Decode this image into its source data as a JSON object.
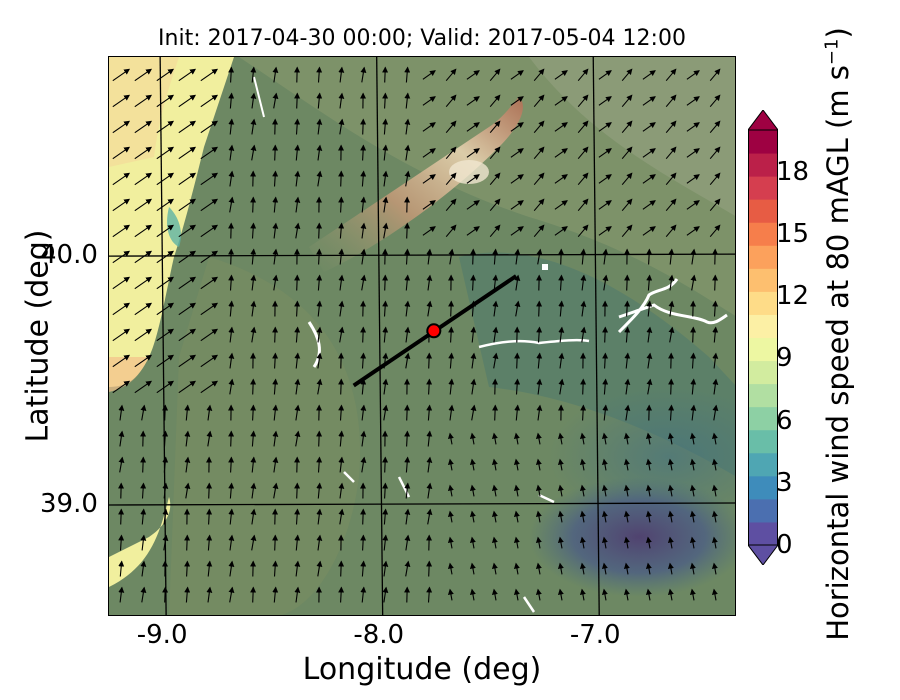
{
  "title": "Init: 2017-04-30 00:00; Valid: 2017-05-04 12:00",
  "x_axis": {
    "label": "Longitude (deg)",
    "range": [
      -9.25,
      -6.35
    ],
    "ticks": [
      {
        "value": -9.0,
        "label": "-9.0"
      },
      {
        "value": -8.0,
        "label": "-8.0"
      },
      {
        "value": -7.0,
        "label": "-7.0"
      }
    ]
  },
  "y_axis": {
    "label": "Latitude (deg)",
    "range": [
      38.55,
      40.8
    ],
    "ticks": [
      {
        "value": 39.0,
        "label": "39.0"
      },
      {
        "value": 40.0,
        "label": "40.0"
      }
    ]
  },
  "colorbar": {
    "label_main": "Horizontal wind speed at 80 mAGL (m s",
    "label_exp": "−1",
    "label_close": ")",
    "range": [
      0,
      20
    ],
    "ticks": [
      {
        "value": 0,
        "label": "0"
      },
      {
        "value": 3,
        "label": "3"
      },
      {
        "value": 6,
        "label": "6"
      },
      {
        "value": 9,
        "label": "9"
      },
      {
        "value": 12,
        "label": "12"
      },
      {
        "value": 15,
        "label": "15"
      },
      {
        "value": 18,
        "label": "18"
      }
    ],
    "colors": [
      "#5e4fa2",
      "#4b6fb0",
      "#3e8cbb",
      "#4fa6b3",
      "#69bea8",
      "#8dd0a4",
      "#b1dfa2",
      "#d2ec9f",
      "#edf7a2",
      "#fcf0a5",
      "#fedc88",
      "#fdbf6f",
      "#fca15c",
      "#f67e4b",
      "#e75c44",
      "#d53e4f",
      "#bb2049",
      "#9e0142"
    ]
  },
  "point_marker": {
    "lon": -7.75,
    "lat": 39.7,
    "color": "#ff0000"
  },
  "transect_line": {
    "start": {
      "lon": -8.12,
      "lat": 39.48
    },
    "end": {
      "lon": -7.37,
      "lat": 39.92
    }
  },
  "colors": {
    "sea": "#f2efa0",
    "land": "#6f8a62",
    "low_wind": "#53496e",
    "ridge": "#b86a52"
  }
}
